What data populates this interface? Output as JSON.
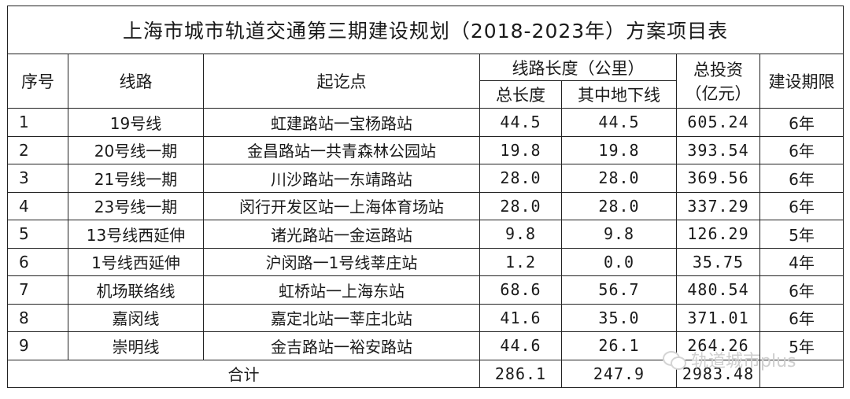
{
  "title": "上海市城市轨道交通第三期建设规划（2018-2023年）方案项目表",
  "headers": {
    "seq": "序号",
    "line": "线路",
    "endpoints": "起讫点",
    "length_group": "线路长度（公里）",
    "total_length": "总长度",
    "underground": "其中地下线",
    "investment_line1": "总投资",
    "investment_line2": "（亿元）",
    "period": "建设期限"
  },
  "rows": [
    {
      "seq": "1",
      "line": "19号线",
      "endpoints": "虹建路站一宝杨路站",
      "total": "44.5",
      "underground": "44.5",
      "investment": "605.24",
      "period": "6年"
    },
    {
      "seq": "2",
      "line": "20号线一期",
      "endpoints": "金昌路站一共青森林公园站",
      "total": "19.8",
      "underground": "19.8",
      "investment": "393.54",
      "period": "6年"
    },
    {
      "seq": "3",
      "line": "21号线一期",
      "endpoints": "川沙路站一东靖路站",
      "total": "28.0",
      "underground": "28.0",
      "investment": "369.56",
      "period": "6年"
    },
    {
      "seq": "4",
      "line": "23号线一期",
      "endpoints": "闵行开发区站一上海体育场站",
      "total": "28.0",
      "underground": "28.0",
      "investment": "337.29",
      "period": "6年"
    },
    {
      "seq": "5",
      "line": "13号线西延伸",
      "endpoints": "诸光路站一金运路站",
      "total": "9.8",
      "underground": "9.8",
      "investment": "126.29",
      "period": "5年"
    },
    {
      "seq": "6",
      "line": "1号线西延伸",
      "endpoints": "沪闵路一1号线莘庄站",
      "total": "1.2",
      "underground": "0.0",
      "investment": "35.75",
      "period": "4年"
    },
    {
      "seq": "7",
      "line": "机场联络线",
      "endpoints": "虹桥站一上海东站",
      "total": "68.6",
      "underground": "56.7",
      "investment": "480.54",
      "period": "6年"
    },
    {
      "seq": "8",
      "line": "嘉闵线",
      "endpoints": "嘉定北站一莘庄北站",
      "total": "41.6",
      "underground": "35.0",
      "investment": "371.01",
      "period": "6年"
    },
    {
      "seq": "9",
      "line": "崇明线",
      "endpoints": "金吉路站一裕安路站",
      "total": "44.6",
      "underground": "26.1",
      "investment": "264.26",
      "period": "5年"
    }
  ],
  "total": {
    "label": "合计",
    "total": "286.1",
    "underground": "247.9",
    "investment": "2983.48",
    "period": ""
  },
  "watermark": "轨道城市plus"
}
